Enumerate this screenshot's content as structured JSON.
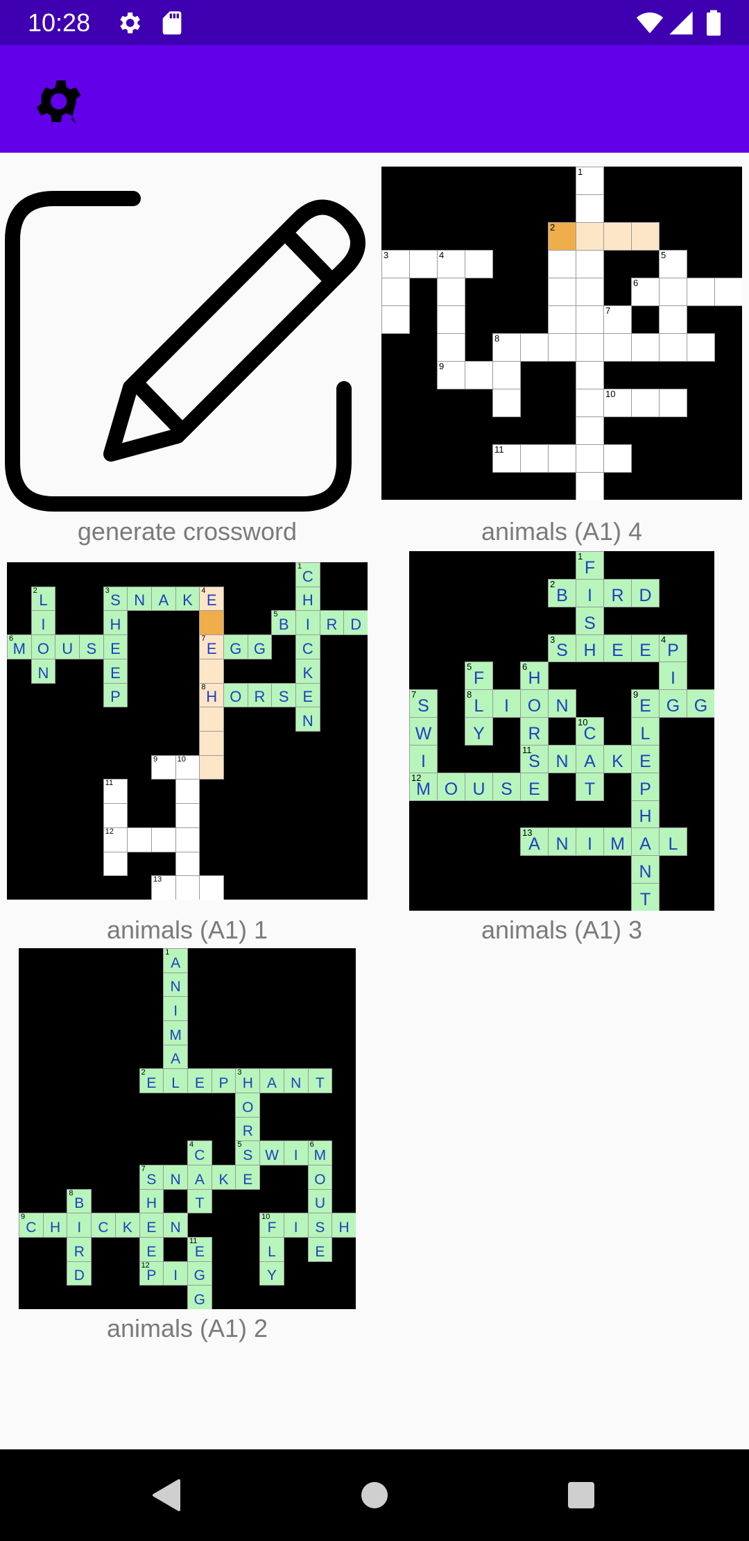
{
  "status_bar": {
    "time": "10:28",
    "left_icons": [
      "gear-icon",
      "sd-card-icon"
    ],
    "right_icons": [
      "wifi-icon",
      "cell-signal-icon",
      "battery-icon"
    ]
  },
  "app_bar": {
    "icon": "settings-gear-icon",
    "background": "#6200ea"
  },
  "colors": {
    "status_bar": "#3e00b1",
    "solved_cell": "#b7f5bb",
    "solved_letter": "#1f3fbf",
    "selected_cell": "#f0ae4a",
    "highlight_cell": "#fde6c8",
    "caption": "#7a7a7a"
  },
  "generate": {
    "label": "generate crossword",
    "icon": "edit-pencil-icon"
  },
  "crosswords": [
    {
      "id": "a4",
      "label": "animals (A1) 4",
      "cols": 13,
      "rows": 12,
      "words": [
        {
          "r": 0,
          "c": 7,
          "dir": "down",
          "len": 12,
          "num": "1",
          "text": ""
        },
        {
          "r": 2,
          "c": 6,
          "dir": "across",
          "len": 4,
          "num": "2",
          "text": ""
        },
        {
          "r": 3,
          "c": 0,
          "dir": "across",
          "len": 4,
          "num": "3",
          "text": ""
        },
        {
          "r": 3,
          "c": 2,
          "dir": "down",
          "len": 5,
          "num": "4",
          "text": ""
        },
        {
          "r": 3,
          "c": 10,
          "dir": "down",
          "len": 4,
          "num": "5",
          "text": ""
        },
        {
          "r": 4,
          "c": 9,
          "dir": "across",
          "len": 4,
          "num": "6",
          "text": ""
        },
        {
          "r": 5,
          "c": 8,
          "dir": "down",
          "len": 2,
          "num": "7",
          "text": ""
        },
        {
          "r": 6,
          "c": 4,
          "dir": "across",
          "len": 8,
          "num": "8",
          "text": ""
        },
        {
          "r": 7,
          "c": 2,
          "dir": "across",
          "len": 3,
          "num": "9",
          "text": ""
        },
        {
          "r": 8,
          "c": 8,
          "dir": "across",
          "len": 3,
          "num": "10",
          "text": ""
        },
        {
          "r": 10,
          "c": 4,
          "dir": "across",
          "len": 5,
          "num": "11",
          "text": ""
        }
      ],
      "extra_cells": [
        [
          4,
          0
        ],
        [
          5,
          0
        ],
        [
          2,
          6
        ],
        [
          3,
          6
        ],
        [
          4,
          6
        ],
        [
          5,
          6
        ],
        [
          7,
          4
        ],
        [
          8,
          4
        ]
      ],
      "selected_cell": [
        2,
        6
      ],
      "highlight_word": 1
    },
    {
      "id": "a1",
      "label": "animals (A1) 1",
      "cols": 15,
      "rows": 14,
      "words": [
        {
          "r": 0,
          "c": 12,
          "dir": "down",
          "len": 7,
          "num": "1",
          "text": "CHICKEN"
        },
        {
          "r": 1,
          "c": 1,
          "dir": "down",
          "len": 4,
          "num": "2",
          "text": "LION"
        },
        {
          "r": 1,
          "c": 4,
          "dir": "across",
          "len": 5,
          "num": "3",
          "text": "SNAKE"
        },
        {
          "r": 1,
          "c": 4,
          "dir": "down",
          "len": 5,
          "num": "",
          "text": "SHEEP"
        },
        {
          "r": 1,
          "c": 8,
          "dir": "down",
          "len": 8,
          "num": "4",
          "text": "E"
        },
        {
          "r": 2,
          "c": 11,
          "dir": "across",
          "len": 4,
          "num": "5",
          "text": "BIRD"
        },
        {
          "r": 3,
          "c": 0,
          "dir": "across",
          "len": 5,
          "num": "6",
          "text": "MOUSE"
        },
        {
          "r": 3,
          "c": 8,
          "dir": "across",
          "len": 3,
          "num": "7",
          "text": "EGG"
        },
        {
          "r": 5,
          "c": 8,
          "dir": "across",
          "len": 5,
          "num": "8",
          "text": "HORSE"
        },
        {
          "r": 8,
          "c": 6,
          "dir": "across",
          "len": 2,
          "num": "9",
          "text": ""
        },
        {
          "r": 8,
          "c": 7,
          "dir": "down",
          "len": 5,
          "num": "10",
          "text": ""
        },
        {
          "r": 9,
          "c": 4,
          "dir": "down",
          "len": 4,
          "num": "11",
          "text": ""
        },
        {
          "r": 11,
          "c": 4,
          "dir": "across",
          "len": 4,
          "num": "12",
          "text": ""
        },
        {
          "r": 13,
          "c": 6,
          "dir": "across",
          "len": 3,
          "num": "13",
          "text": ""
        }
      ],
      "extra_cells": [],
      "selected_cell": [
        2,
        8
      ],
      "highlight_word": 4
    },
    {
      "id": "a3",
      "label": "animals (A1) 3",
      "cols": 11,
      "rows": 13,
      "words": [
        {
          "r": 0,
          "c": 6,
          "dir": "down",
          "len": 3,
          "num": "1",
          "text": "FIS"
        },
        {
          "r": 1,
          "c": 5,
          "dir": "across",
          "len": 4,
          "num": "2",
          "text": "BIRD"
        },
        {
          "r": 3,
          "c": 5,
          "dir": "across",
          "len": 5,
          "num": "3",
          "text": "SHEEP"
        },
        {
          "r": 3,
          "c": 9,
          "dir": "down",
          "len": 3,
          "num": "4",
          "text": "PIG"
        },
        {
          "r": 4,
          "c": 2,
          "dir": "down",
          "len": 3,
          "num": "5",
          "text": "FLY"
        },
        {
          "r": 4,
          "c": 4,
          "dir": "down",
          "len": 4,
          "num": "6",
          "text": "HORS"
        },
        {
          "r": 5,
          "c": 0,
          "dir": "down",
          "len": 4,
          "num": "7",
          "text": "SWIM"
        },
        {
          "r": 5,
          "c": 2,
          "dir": "across",
          "len": 4,
          "num": "8",
          "text": "LION"
        },
        {
          "r": 5,
          "c": 8,
          "dir": "across",
          "len": 3,
          "num": "9",
          "text": "EGG"
        },
        {
          "r": 5,
          "c": 8,
          "dir": "down",
          "len": 8,
          "num": "",
          "text": "ELEPHANT"
        },
        {
          "r": 6,
          "c": 6,
          "dir": "down",
          "len": 3,
          "num": "10",
          "text": "CAT"
        },
        {
          "r": 7,
          "c": 4,
          "dir": "across",
          "len": 5,
          "num": "11",
          "text": "SNAKE"
        },
        {
          "r": 8,
          "c": 0,
          "dir": "across",
          "len": 5,
          "num": "12",
          "text": "MOUSE"
        },
        {
          "r": 10,
          "c": 4,
          "dir": "across",
          "len": 6,
          "num": "13",
          "text": "ANIMAL"
        }
      ],
      "extra_cells": [],
      "selected_cell": null,
      "highlight_word": null
    },
    {
      "id": "a2",
      "label": "animals (A1) 2",
      "cols": 14,
      "rows": 15,
      "words": [
        {
          "r": 0,
          "c": 6,
          "dir": "down",
          "len": 6,
          "num": "1",
          "text": "ANIMAL"
        },
        {
          "r": 5,
          "c": 5,
          "dir": "across",
          "len": 8,
          "num": "2",
          "text": "ELEPHANT"
        },
        {
          "r": 5,
          "c": 9,
          "dir": "down",
          "len": 4,
          "num": "3",
          "text": "HORS"
        },
        {
          "r": 8,
          "c": 7,
          "dir": "down",
          "len": 3,
          "num": "4",
          "text": "CAT"
        },
        {
          "r": 8,
          "c": 9,
          "dir": "across",
          "len": 4,
          "num": "5",
          "text": "SWIM"
        },
        {
          "r": 8,
          "c": 12,
          "dir": "down",
          "len": 5,
          "num": "6",
          "text": "MOUSE"
        },
        {
          "r": 9,
          "c": 5,
          "dir": "across",
          "len": 5,
          "num": "7",
          "text": "SNAKE"
        },
        {
          "r": 9,
          "c": 5,
          "dir": "down",
          "len": 5,
          "num": "",
          "text": "SHEEP"
        },
        {
          "r": 10,
          "c": 2,
          "dir": "down",
          "len": 4,
          "num": "8",
          "text": "BIRD"
        },
        {
          "r": 11,
          "c": 0,
          "dir": "across",
          "len": 7,
          "num": "9",
          "text": "CHICKEN"
        },
        {
          "r": 11,
          "c": 10,
          "dir": "across",
          "len": 4,
          "num": "10",
          "text": "FISH"
        },
        {
          "r": 11,
          "c": 10,
          "dir": "down",
          "len": 3,
          "num": "",
          "text": "FLY"
        },
        {
          "r": 12,
          "c": 7,
          "dir": "down",
          "len": 3,
          "num": "11",
          "text": "EGG"
        },
        {
          "r": 13,
          "c": 5,
          "dir": "across",
          "len": 3,
          "num": "12",
          "text": "PIG"
        }
      ],
      "extra_cells": [],
      "selected_cell": null,
      "highlight_word": null
    }
  ],
  "nav_bar": {
    "back_icon": "back-triangle-icon",
    "home_icon": "home-circle-icon",
    "recents_icon": "recents-square-icon"
  }
}
